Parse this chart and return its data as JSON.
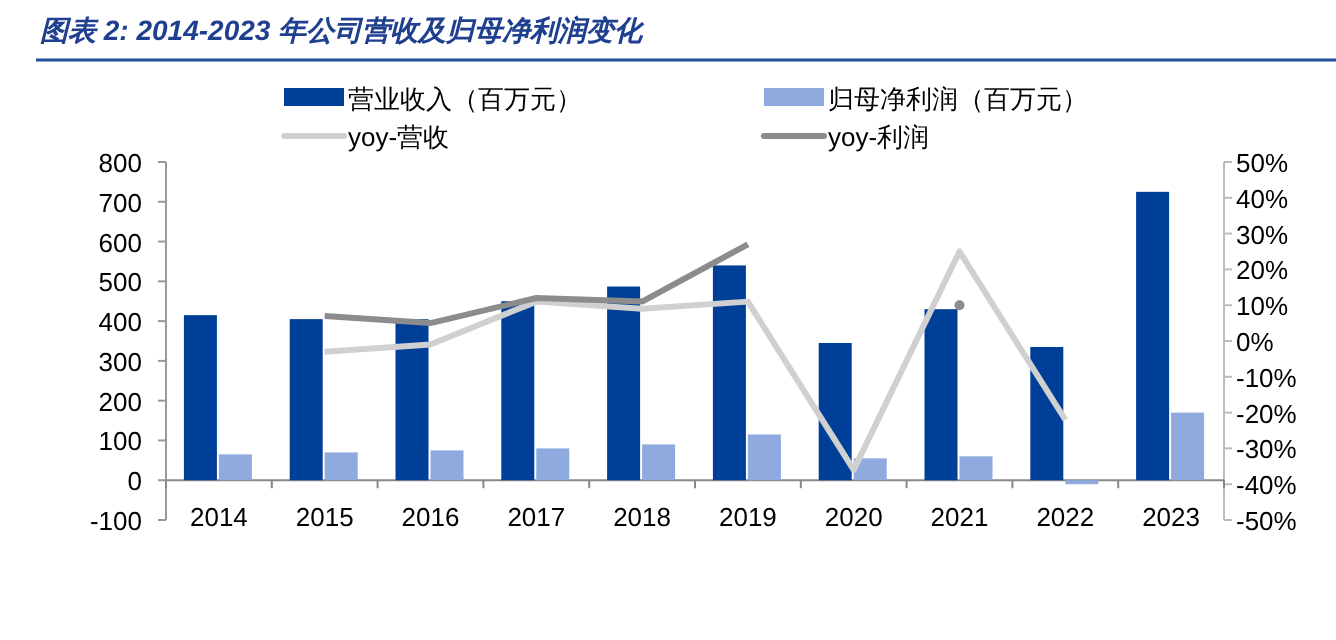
{
  "chart_data": {
    "type": "bar",
    "title": "图表 2:  2014-2023 年公司营收及归母净利润变化",
    "categories": [
      "2014",
      "2015",
      "2016",
      "2017",
      "2018",
      "2019",
      "2020",
      "2021",
      "2022",
      "2023"
    ],
    "series": [
      {
        "name": "营业收入（百万元）",
        "color": "#003f98",
        "values": [
          415,
          405,
          405,
          450,
          487,
          540,
          345,
          430,
          335,
          725
        ]
      },
      {
        "name": "归母净利润（百万元）",
        "color": "#8eaadf",
        "values": [
          65,
          70,
          75,
          80,
          90,
          115,
          55,
          60,
          -10,
          170
        ]
      },
      {
        "name": "yoy-营收",
        "type": "line",
        "axis": "y2",
        "color": "#d0d0d0",
        "values": [
          null,
          -3,
          -1,
          11,
          9,
          11,
          -36,
          25,
          -22,
          null
        ]
      },
      {
        "name": "yoy-利润",
        "type": "line",
        "axis": "y2",
        "color": "#8c8c8c",
        "values": [
          null,
          7,
          5,
          12,
          11,
          27,
          null,
          10,
          null,
          null
        ]
      }
    ],
    "ylim": [
      -100,
      800
    ],
    "yticks": [
      -100,
      0,
      100,
      200,
      300,
      400,
      500,
      600,
      700,
      800
    ],
    "y2lim": [
      -50,
      50
    ],
    "y2ticks": [
      {
        "value": -50,
        "label": "-50%"
      },
      {
        "value": -40,
        "label": "-40%"
      },
      {
        "value": -30,
        "label": "-30%"
      },
      {
        "value": -20,
        "label": "-20%"
      },
      {
        "value": -10,
        "label": "-10%"
      },
      {
        "value": 0,
        "label": "0%"
      },
      {
        "value": 10,
        "label": "10%"
      },
      {
        "value": 20,
        "label": "20%"
      },
      {
        "value": 30,
        "label": "30%"
      },
      {
        "value": 40,
        "label": "40%"
      },
      {
        "value": 50,
        "label": "50%"
      }
    ],
    "legend": "top",
    "grid": false
  }
}
